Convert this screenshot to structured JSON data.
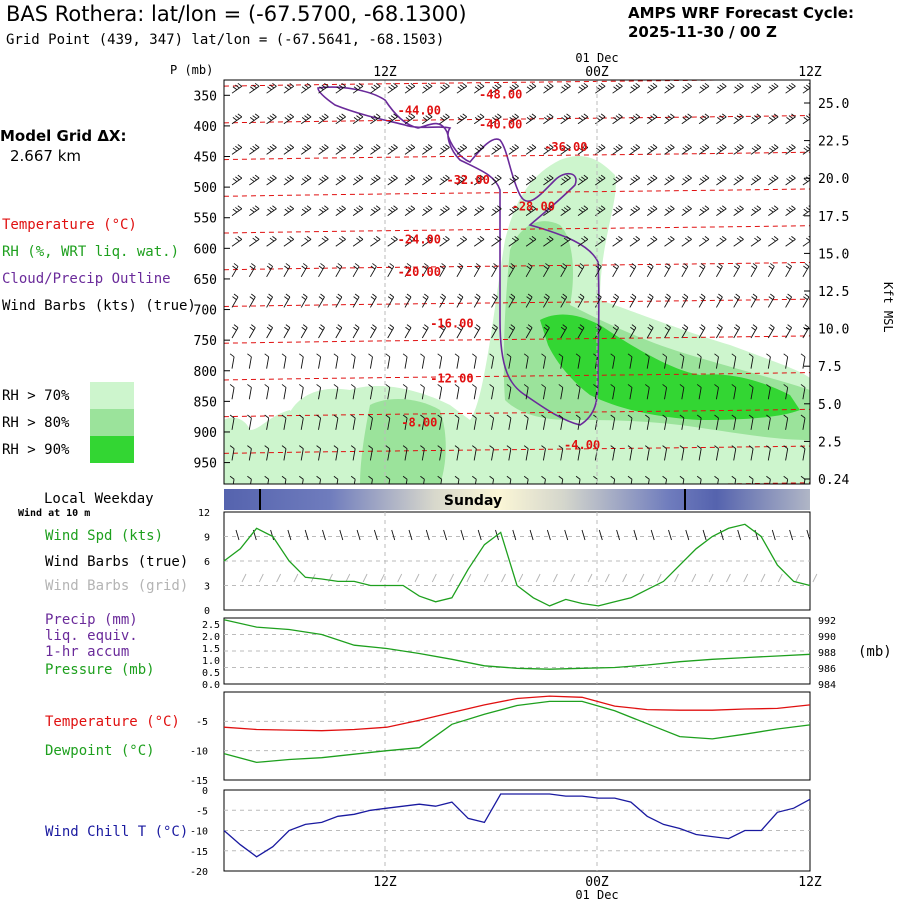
{
  "header": {
    "title": "BAS Rothera:  lat/lon = (-67.5700, -68.1300)",
    "subtitle": "Grid Point (439, 347) lat/lon = (-67.5641, -68.1503)",
    "cycle_line1": "AMPS WRF Forecast Cycle:",
    "cycle_line2": "2025-11-30 / 00  Z",
    "model_grid_line1": "Model Grid ΔX:",
    "model_grid_line2": "2.667 km"
  },
  "legend": {
    "temperature": "Temperature (°C)",
    "rh": "RH (%, WRT liq. wat.)",
    "cloud": "Cloud/Precip Outline",
    "wind": "Wind Barbs (kts) (true)",
    "rh70": "RH > 70%",
    "rh80": "RH > 80%",
    "rh90": "RH > 90%",
    "colors": {
      "temperature": "#e01010",
      "rh": "#1ea01e",
      "cloud": "#6a2a9a",
      "wind": "#000000",
      "rh70": "#cdf5cd",
      "rh80": "#9be39b",
      "rh90": "#33d633"
    }
  },
  "time_axis": {
    "top_date": "01 Dec",
    "ticks": [
      "12Z",
      "00Z",
      "12Z"
    ],
    "bottom_ticks": [
      "12Z",
      "00Z",
      "12Z"
    ],
    "bottom_date": "01 Dec"
  },
  "weekday": {
    "label": "Local Weekday",
    "day": "Sunday"
  },
  "wind10": {
    "title": "Wind at 10 m",
    "spd": "Wind Spd (kts)",
    "barbs_true": "Wind Barbs (true)",
    "barbs_grid": "Wind Barbs (grid)"
  },
  "precip": {
    "l1": "Precip (mm)",
    "l2": "liq. equiv.",
    "l3": "1-hr accum",
    "pres": "Pressure (mb)",
    "unit": "(mb)"
  },
  "temp_panel": {
    "t": "Temperature (°C)",
    "td": "Dewpoint (°C)"
  },
  "chill_panel": {
    "label": "Wind Chill T (°C)"
  },
  "chart_data": [
    {
      "type": "line",
      "name": "cross-section",
      "x_range_hours": [
        0,
        36
      ],
      "pressure_ticks": [
        "350",
        "400",
        "450",
        "500",
        "550",
        "600",
        "650",
        "700",
        "750",
        "800",
        "850",
        "900",
        "950"
      ],
      "height_ticks": [
        "25.0",
        "22.5",
        "20.0",
        "17.5",
        "15.0",
        "12.5",
        "10.0",
        "7.5",
        "5.0",
        "2.5",
        "0.24"
      ],
      "y_label_left": "P (mb)",
      "y_label_right": "Kft MSL",
      "temperature_labels": [
        {
          "text": "-48.00",
          "t": 17,
          "p": 347
        },
        {
          "text": "-44.00",
          "t": 12,
          "p": 373
        },
        {
          "text": "-40.00",
          "t": 17,
          "p": 396
        },
        {
          "text": "-36.00",
          "t": 21,
          "p": 433
        },
        {
          "text": "-32.00",
          "t": 15,
          "p": 487
        },
        {
          "text": "-28.00",
          "t": 19,
          "p": 530
        },
        {
          "text": "-24.00",
          "t": 12,
          "p": 584
        },
        {
          "text": "-20.00",
          "t": 12,
          "p": 637
        },
        {
          "text": "-16.00",
          "t": 14,
          "p": 721
        },
        {
          "text": "-12.00",
          "t": 14,
          "p": 811
        },
        {
          "text": "-8.00",
          "t": 12,
          "p": 883
        },
        {
          "text": "-4.00",
          "t": 22,
          "p": 920
        }
      ]
    },
    {
      "type": "line",
      "name": "wind-speed",
      "title": "Wind Spd (kts)",
      "ylim": [
        0,
        12
      ],
      "y_ticks": [
        "12",
        "9",
        "6",
        "3",
        "0"
      ],
      "x_hours": [
        0,
        1,
        2,
        3,
        4,
        5,
        6,
        7,
        8,
        9,
        10,
        11,
        12,
        13,
        14,
        15,
        16,
        17,
        18,
        19,
        20,
        21,
        22,
        23,
        24,
        25,
        26,
        27,
        28,
        29,
        30,
        31,
        32,
        33,
        34,
        35,
        36
      ],
      "values": [
        6,
        7.5,
        10,
        9,
        6,
        4,
        3.8,
        3.5,
        3.5,
        3,
        3,
        3,
        1.7,
        1,
        1.5,
        5,
        8,
        9.5,
        3,
        1.5,
        0.5,
        1.3,
        0.8,
        0.5,
        1,
        1.5,
        2.5,
        3.5,
        5.5,
        7.5,
        9,
        10,
        10.5,
        9,
        5.5,
        3.5,
        3
      ]
    },
    {
      "type": "line",
      "name": "pressure",
      "title": "Pressure (mb)",
      "ylim": [
        984,
        992
      ],
      "y_ticks_left": [
        "2.5",
        "2.0",
        "1.5",
        "1.0",
        "0.5",
        "0.0"
      ],
      "y_ticks_right": [
        "992",
        "990",
        "988",
        "986",
        "984"
      ],
      "x_hours": [
        0,
        2,
        4,
        6,
        8,
        10,
        12,
        14,
        16,
        18,
        20,
        22,
        24,
        26,
        28,
        30,
        32,
        34,
        36
      ],
      "values": [
        991.8,
        990.9,
        990.6,
        990.0,
        988.7,
        988.3,
        987.7,
        987.0,
        986.2,
        985.9,
        985.8,
        985.9,
        986.0,
        986.3,
        986.7,
        987.0,
        987.2,
        987.4,
        987.6
      ]
    },
    {
      "type": "line",
      "name": "temperature-dewpoint",
      "ylim": [
        -15,
        0
      ],
      "y_ticks": [
        "-5",
        "-10",
        "-15"
      ],
      "x_hours": [
        0,
        2,
        4,
        6,
        8,
        10,
        12,
        14,
        16,
        18,
        20,
        22,
        24,
        26,
        28,
        30,
        32,
        34,
        36
      ],
      "series": [
        {
          "name": "Temperature (°C)",
          "values": [
            -6,
            -6.4,
            -6.5,
            -6.6,
            -6.4,
            -6.0,
            -4.8,
            -3.5,
            -2.2,
            -1.1,
            -0.7,
            -0.9,
            -2.4,
            -3.0,
            -3.1,
            -3.1,
            -2.9,
            -2.8,
            -2.2
          ]
        },
        {
          "name": "Dewpoint (°C)",
          "values": [
            -10.5,
            -12.0,
            -11.5,
            -11.2,
            -10.6,
            -10.0,
            -9.5,
            -5.5,
            -3.8,
            -2.3,
            -1.6,
            -1.6,
            -3.2,
            -5.4,
            -7.6,
            -8.0,
            -7.2,
            -6.3,
            -5.6
          ]
        }
      ]
    },
    {
      "type": "line",
      "name": "wind-chill",
      "title": "Wind Chill T (°C)",
      "ylim": [
        -20,
        0
      ],
      "y_ticks": [
        "0",
        "-5",
        "-10",
        "-15",
        "-20"
      ],
      "x_hours": [
        0,
        1,
        2,
        3,
        4,
        5,
        6,
        7,
        8,
        9,
        10,
        11,
        12,
        13,
        14,
        15,
        16,
        17,
        18,
        19,
        20,
        21,
        22,
        23,
        24,
        25,
        26,
        27,
        28,
        29,
        30,
        31,
        32,
        33,
        34,
        35,
        36
      ],
      "values": [
        -10,
        -13.5,
        -16.5,
        -14,
        -10,
        -8.5,
        -8,
        -6.5,
        -6,
        -5,
        -4.5,
        -4,
        -3.5,
        -4,
        -3,
        -7,
        -8,
        -1,
        -1,
        -1,
        -1,
        -1.5,
        -1.5,
        -2,
        -2,
        -3,
        -6.5,
        -8.5,
        -9.5,
        -11,
        -11.5,
        -12,
        -10,
        -10,
        -5.5,
        -4.5,
        -2.3
      ]
    }
  ]
}
